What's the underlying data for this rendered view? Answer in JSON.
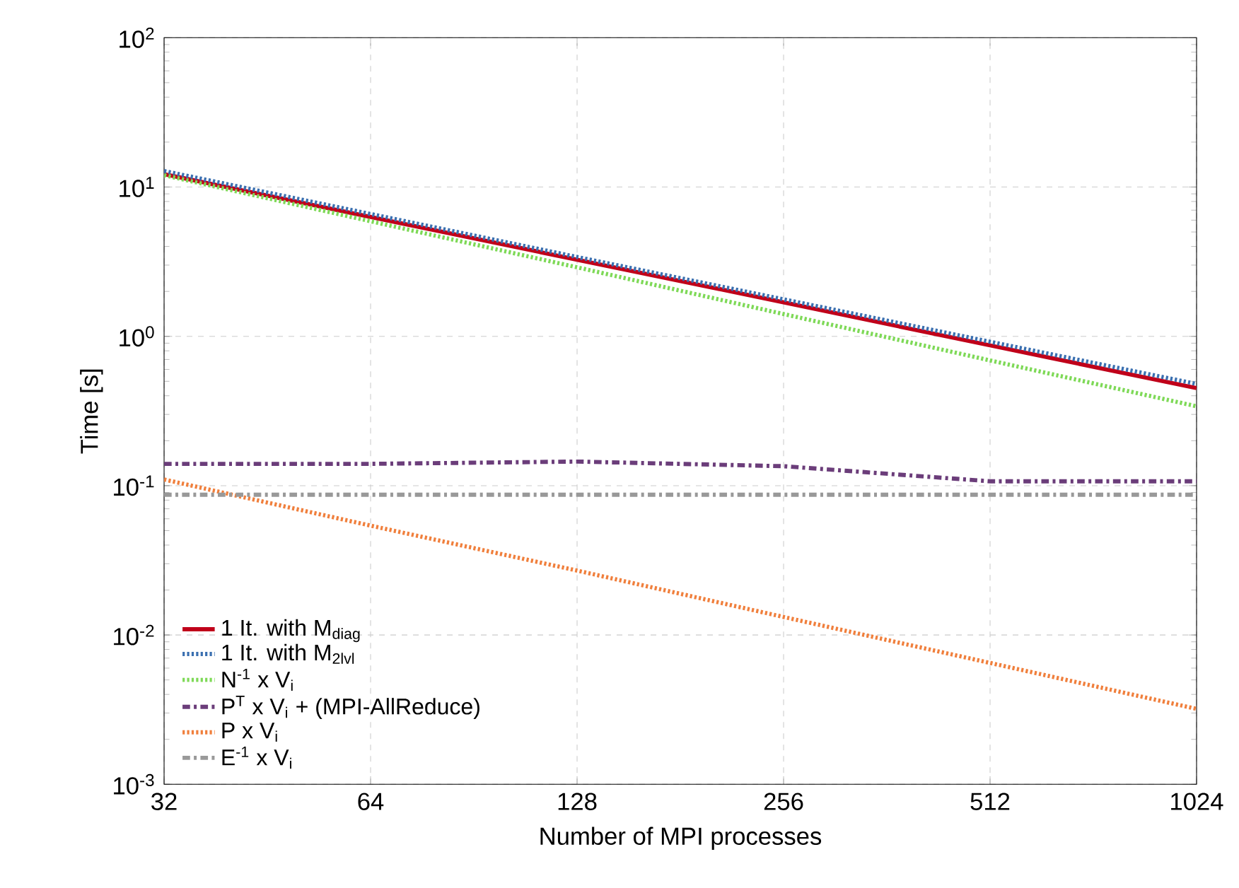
{
  "chart_data": {
    "type": "line",
    "xlabel": "Number of MPI processes",
    "ylabel": "Time [s]",
    "x": [
      32,
      64,
      128,
      256,
      512,
      1024
    ],
    "xlim": [
      32,
      1024
    ],
    "xticks": [
      32,
      64,
      128,
      256,
      512,
      1024
    ],
    "ylim": [
      0.001,
      100
    ],
    "yticks": [
      {
        "value": 0.001,
        "label": "10$^{-3}$"
      },
      {
        "value": 0.01,
        "label": "10$^{-2}$"
      },
      {
        "value": 0.1,
        "label": "10$^{-1}$"
      },
      {
        "value": 1,
        "label": "10$^{0}$"
      },
      {
        "value": 10,
        "label": "10$^{1}$"
      },
      {
        "value": 100,
        "label": "10$^{2}$"
      }
    ],
    "log": "xy",
    "grid": true,
    "legend": "bottom left",
    "series": [
      {
        "name": "1 It. with M$_{diag}$",
        "color": "#c0001a",
        "line_style": "solid",
        "values": [
          12.2,
          6.3,
          3.26,
          1.69,
          0.87,
          0.45
        ]
      },
      {
        "name": "1 It. with M$_{2lvl}$",
        "color": "#3a6fb0",
        "line_style": "dotted",
        "values": [
          12.8,
          6.6,
          3.4,
          1.77,
          0.92,
          0.48
        ]
      },
      {
        "name": "N$^{-1}$ x V$_{i}$",
        "color": "#7ed957",
        "line_style": "dotted",
        "values": [
          12,
          5.9,
          2.9,
          1.41,
          0.69,
          0.34
        ]
      },
      {
        "name": "P$^{T}$ x V$_{i}$ + (MPI-AllReduce)",
        "color": "#6b3d7a",
        "line_style": "dashed",
        "values": [
          0.14,
          0.14,
          0.145,
          0.135,
          0.107,
          0.107
        ]
      },
      {
        "name": "P x V$_{i}$",
        "color": "#f07f3c",
        "line_style": "dotted",
        "values": [
          0.11,
          0.054,
          0.027,
          0.0132,
          0.0065,
          0.0032
        ]
      },
      {
        "name": "E$^{-1}$ x V$_{i}$",
        "color": "#999999",
        "line_style": "dashed",
        "values": [
          0.087,
          0.087,
          0.087,
          0.087,
          0.087,
          0.087
        ]
      }
    ]
  }
}
